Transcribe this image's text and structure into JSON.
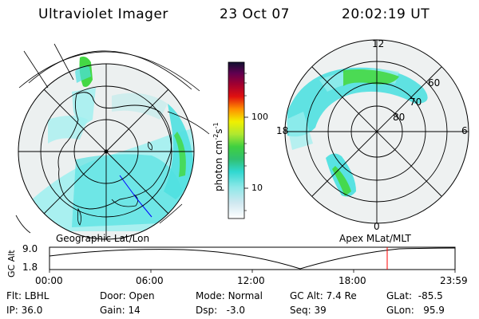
{
  "header": {
    "instrument": "Ultraviolet Imager",
    "date": "23 Oct 07",
    "time": "20:02:19 UT"
  },
  "left_panel": {
    "caption": "Geographic Lat/Lon"
  },
  "right_panel": {
    "caption": "Apex MLat/MLT",
    "mlt_labels": [
      "12",
      "18",
      "6",
      "0"
    ],
    "mlat_labels": [
      "60",
      "70",
      "80"
    ]
  },
  "colorbar": {
    "unit_label": "photon cm",
    "unit_exp1": "-2",
    "unit_mid": "s",
    "unit_exp2": "-1",
    "ticks": [
      "100",
      "10"
    ]
  },
  "altitude_plot": {
    "ylabel": "GC Alt",
    "y_ticks": [
      "9.0",
      "1.8"
    ],
    "x_ticks": [
      "00:00",
      "06:00",
      "12:00",
      "18:00",
      "23:59"
    ],
    "current_time_marker": "20:02"
  },
  "info": {
    "filter_label": "Flt:",
    "filter_value": "LBHL",
    "ip_label": "IP:",
    "ip_value": "36.0",
    "door_label": "Door:",
    "door_value": "Open",
    "gain_label": "Gain:",
    "gain_value": "14",
    "mode_label": "Mode:",
    "mode_value": "Normal",
    "dsp_label": "Dsp:",
    "dsp_value": "-3.0",
    "gcalt_label": "GC Alt:",
    "gcalt_value": "7.4 Re",
    "seq_label": "Seq:",
    "seq_value": "39",
    "glat_label": "GLat:",
    "glat_value": "-85.5",
    "glon_label": "GLon:",
    "glon_value": "95.9"
  },
  "colors": {
    "cyan": "#4fe0e0",
    "light_cyan": "#9ef0f0",
    "green": "#44d844",
    "gray_noise": "#c8d0d0",
    "coast_blue": "#0000ff",
    "marker_red": "#ff0000"
  }
}
